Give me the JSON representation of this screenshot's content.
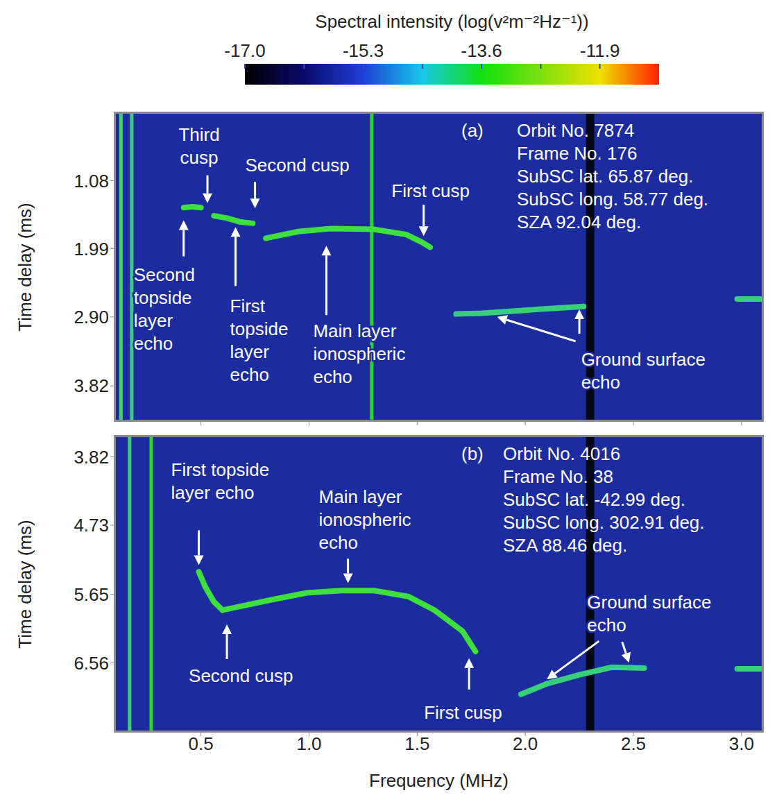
{
  "colorbar": {
    "title": "Spectral intensity (log(v²m⁻²Hz⁻¹))",
    "lim": [
      -17.0,
      -11.05
    ],
    "ticks": [
      {
        "value": -17,
        "label": "-17.0"
      },
      -15.3,
      -13.6,
      -11.9
    ],
    "minor_ticks": [
      -16.15,
      -14.45,
      -12.75
    ],
    "colors": [
      "#000000",
      "#0a0a6e",
      "#1f3fd6",
      "#18c8e8",
      "#10e010",
      "#7de010",
      "#f0e000",
      "#ff2000"
    ]
  },
  "chart_data": [
    {
      "type": "spectrogram",
      "label": "(a)",
      "info": [
        "Orbit No. 7874",
        "Frame No. 176",
        "SubSC lat. 65.87 deg.",
        "SubSC long. 58.77 deg.",
        "SZA 92.04 deg."
      ],
      "ylabel": "Time delay (ms)",
      "xlim": [
        0.1,
        3.1
      ],
      "xticks": [
        0.5,
        {
          "value": 1,
          "label": "1.0"
        },
        1.5,
        {
          "value": 2,
          "label": "2.0"
        },
        2.5,
        {
          "value": 3,
          "label": "3.0"
        }
      ],
      "ylim": [
        0.17,
        4.29
      ],
      "yticks": [
        1.08,
        1.99,
        {
          "value": 2.9,
          "label": "2.90"
        },
        3.82
      ],
      "tick_labels": "y",
      "color": "#1c2c9e",
      "vertical_lines": [
        {
          "x": 0.13,
          "color": "#3fcf7a"
        },
        {
          "x": 0.18,
          "color": "#3fcf7a"
        },
        {
          "x": 1.29,
          "color": "#2fd42f"
        },
        {
          "x": 2.3,
          "color": "#050818"
        }
      ],
      "series": [
        {
          "color": "#3ee03e",
          "x": [
            0.42,
            0.46,
            0.5
          ],
          "values": [
            1.44,
            1.43,
            1.44
          ]
        },
        {
          "color": "#3ee03e",
          "x": [
            0.56,
            0.62,
            0.68,
            0.74
          ],
          "values": [
            1.55,
            1.58,
            1.63,
            1.65
          ]
        },
        {
          "color": "#3ee03e",
          "x": [
            0.8,
            0.95,
            1.1,
            1.3,
            1.45,
            1.52,
            1.56
          ],
          "values": [
            1.85,
            1.76,
            1.72,
            1.73,
            1.8,
            1.9,
            1.97
          ]
        },
        {
          "color": "#36d07a",
          "x": [
            1.68,
            1.8,
            1.95,
            2.1,
            2.27
          ],
          "values": [
            2.86,
            2.85,
            2.82,
            2.79,
            2.76
          ]
        },
        {
          "color": "#36d07a",
          "x": [
            2.98,
            3.1
          ],
          "values": [
            2.66,
            2.66
          ]
        }
      ],
      "annotations": [
        {
          "text": "Third cusp",
          "points": [
            [
              0.53,
              1.38
            ]
          ]
        },
        {
          "text": "Second cusp",
          "points": [
            [
              0.75,
              1.45
            ]
          ]
        },
        {
          "text": "First cusp",
          "points": [
            [
              1.53,
              1.82
            ]
          ]
        },
        {
          "text": "Second topside layer echo",
          "points": [
            [
              0.42,
              1.61
            ]
          ]
        },
        {
          "text": "First topside layer echo",
          "points": [
            [
              0.66,
              1.7
            ]
          ]
        },
        {
          "text": "Main layer ionospheric echo",
          "points": [
            [
              1.08,
              1.95
            ]
          ]
        },
        {
          "text": "Ground surface echo",
          "points": [
            [
              1.87,
              2.9
            ],
            [
              2.25,
              2.8
            ]
          ]
        }
      ]
    },
    {
      "type": "spectrogram",
      "label": "(b)",
      "info": [
        "Orbit No. 4016",
        "Frame No. 38",
        "SubSC lat. -42.99 deg.",
        "SubSC long. 302.91 deg.",
        "SZA 88.46 deg."
      ],
      "xlabel": "Frequency (MHz)",
      "ylabel": "Time delay (ms)",
      "xlim": [
        0.1,
        3.1
      ],
      "xticks": [
        0.5,
        {
          "value": 1,
          "label": "1.0"
        },
        1.5,
        {
          "value": 2,
          "label": "2.0"
        },
        2.5,
        {
          "value": 3,
          "label": "3.0"
        }
      ],
      "ylim": [
        3.54,
        7.48
      ],
      "yticks": [
        3.82,
        4.73,
        5.65,
        6.56
      ],
      "color": "#1c2c9e",
      "vertical_lines": [
        {
          "x": 0.17,
          "color": "#3fcf7a"
        },
        {
          "x": 0.27,
          "color": "#2fd42f"
        },
        {
          "x": 2.3,
          "color": "#050818"
        }
      ],
      "series": [
        {
          "color": "#3ee03e",
          "x": [
            0.49,
            0.52,
            0.56,
            0.6
          ],
          "values": [
            5.35,
            5.55,
            5.75,
            5.86
          ]
        },
        {
          "color": "#3ee03e",
          "x": [
            0.6,
            0.7,
            0.83,
            0.99,
            1.15,
            1.3,
            1.46,
            1.58,
            1.71,
            1.77
          ],
          "values": [
            5.86,
            5.8,
            5.72,
            5.63,
            5.6,
            5.6,
            5.68,
            5.86,
            6.14,
            6.41
          ]
        },
        {
          "color": "#36d07a",
          "x": [
            1.98,
            2.1,
            2.25,
            2.4,
            2.55
          ],
          "values": [
            6.98,
            6.84,
            6.72,
            6.62,
            6.63
          ]
        },
        {
          "color": "#36d07a",
          "x": [
            2.98,
            3.1
          ],
          "values": [
            6.64,
            6.64
          ]
        }
      ],
      "annotations": [
        {
          "text": "First topside layer echo",
          "points": [
            [
              0.49,
              5.26
            ]
          ]
        },
        {
          "text": "Second cusp",
          "points": [
            [
              0.62,
              6.05
            ]
          ]
        },
        {
          "text": "Main layer ionospheric echo",
          "points": [
            [
              1.18,
              5.5
            ]
          ]
        },
        {
          "text": "First cusp",
          "points": [
            [
              1.74,
              6.5
            ]
          ]
        },
        {
          "text": "Ground surface echo",
          "points": [
            [
              2.1,
              6.78
            ],
            [
              2.48,
              6.56
            ]
          ]
        }
      ]
    }
  ]
}
